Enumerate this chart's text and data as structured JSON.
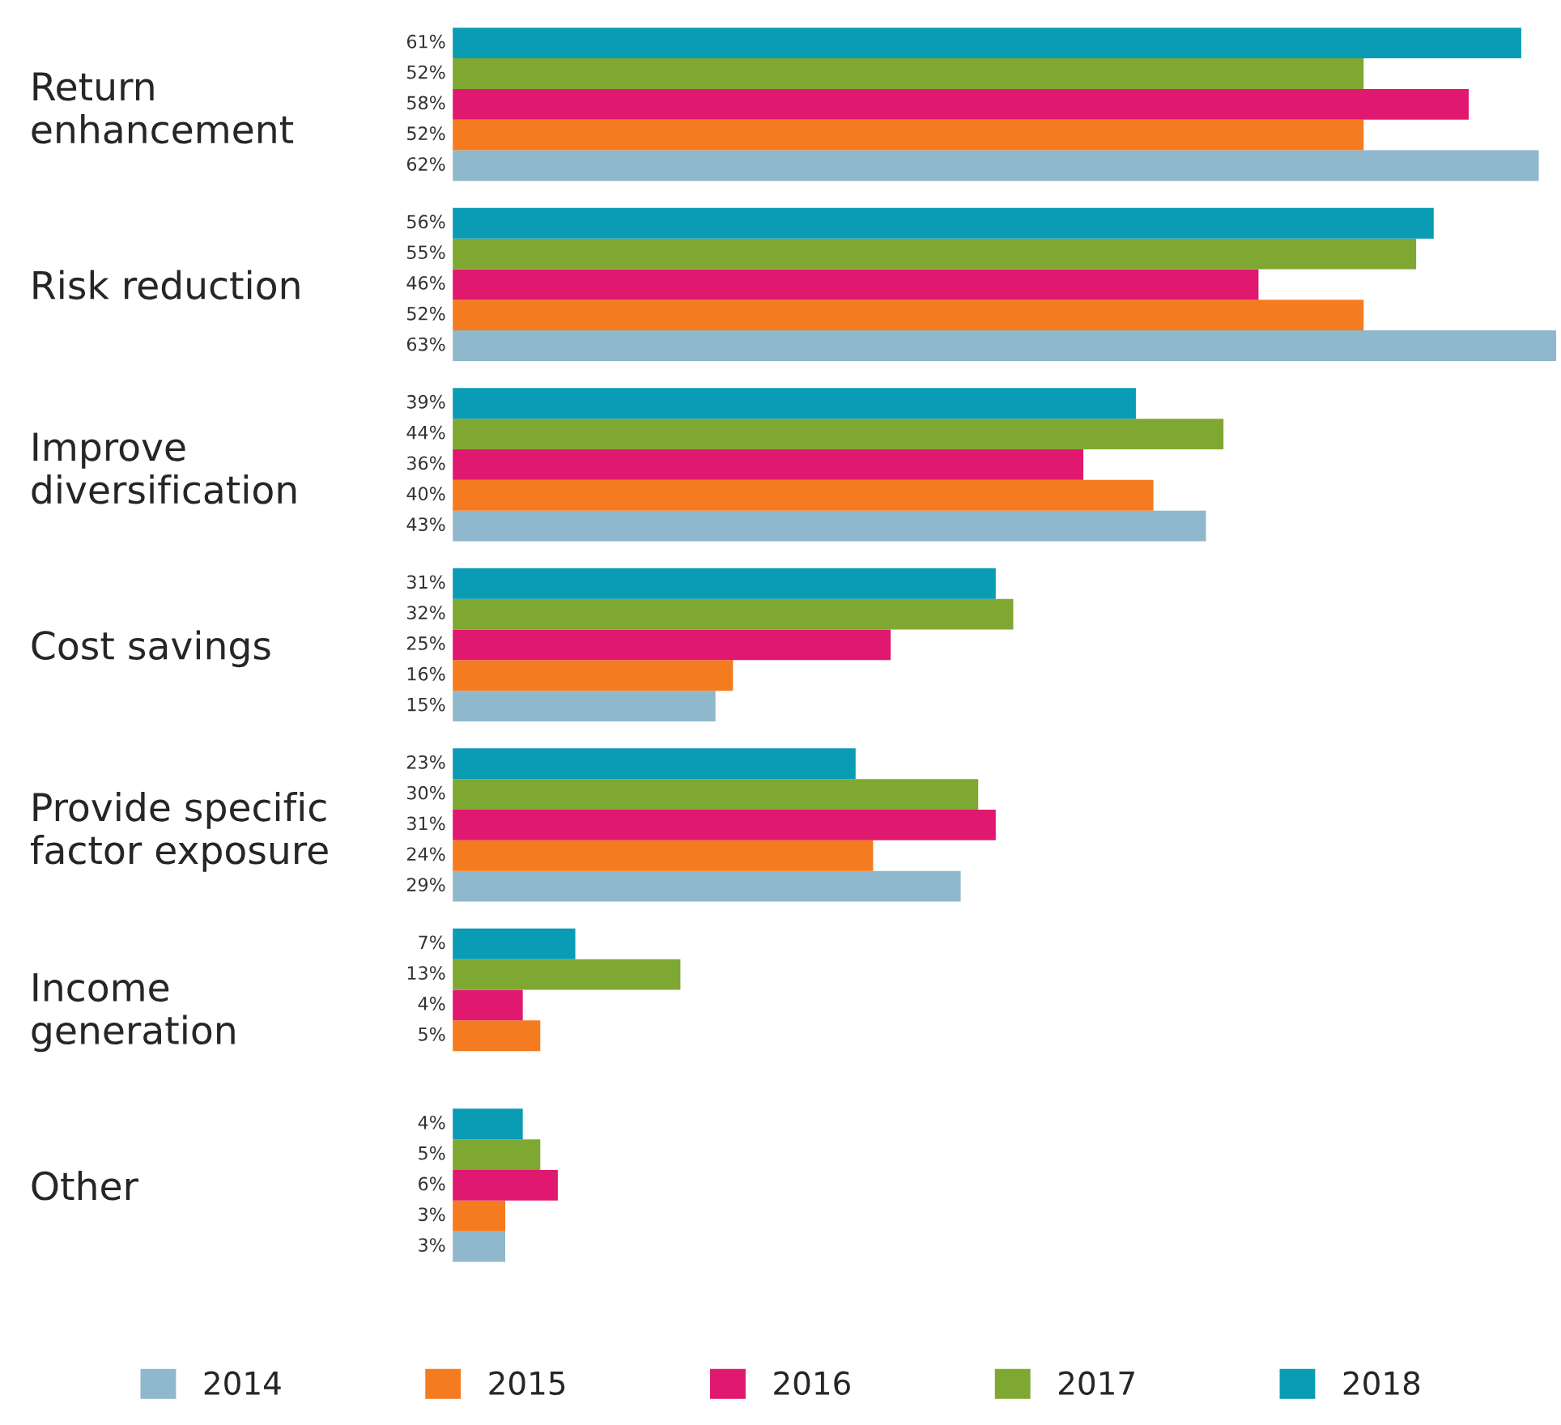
{
  "chart_data": {
    "type": "bar",
    "orientation": "horizontal",
    "categories": [
      "Return\nenhancement",
      "Risk reduction",
      "Improve\ndiversification",
      "Cost savings",
      "Provide specific\nfactor exposure",
      "Income\ngeneration",
      "Other"
    ],
    "xlim": [
      0,
      63
    ],
    "tick_labels": "y",
    "legend": "bottom",
    "grid": false,
    "series": [
      {
        "name": "2014",
        "color": "#8fb8cc",
        "values": [
          62,
          63,
          43,
          15,
          29,
          null,
          3
        ],
        "value_labels": [
          "62%",
          "63%",
          "43%",
          "15%",
          "29%",
          null,
          "3%"
        ]
      },
      {
        "name": "2015",
        "color": "#f47b20",
        "values": [
          52,
          52,
          40,
          16,
          24,
          5,
          3
        ],
        "value_labels": [
          "52%",
          "52%",
          "40%",
          "16%",
          "24%",
          "5%",
          "3%"
        ]
      },
      {
        "name": "2016",
        "color": "#e0186f",
        "values": [
          58,
          46,
          36,
          25,
          31,
          4,
          6
        ],
        "value_labels": [
          "58%",
          "46%",
          "36%",
          "25%",
          "31%",
          "4%",
          "6%"
        ]
      },
      {
        "name": "2017",
        "color": "#7fa832",
        "values": [
          52,
          55,
          44,
          32,
          30,
          13,
          5
        ],
        "value_labels": [
          "52%",
          "55%",
          "44%",
          "32%",
          "30%",
          "13%",
          "5%"
        ]
      },
      {
        "name": "2018",
        "color": "#0a9bb5",
        "values": [
          61,
          56,
          39,
          31,
          23,
          7,
          4
        ],
        "value_labels": [
          "61%",
          "56%",
          "39%",
          "31%",
          "23%",
          "7%",
          "4%"
        ]
      }
    ]
  }
}
